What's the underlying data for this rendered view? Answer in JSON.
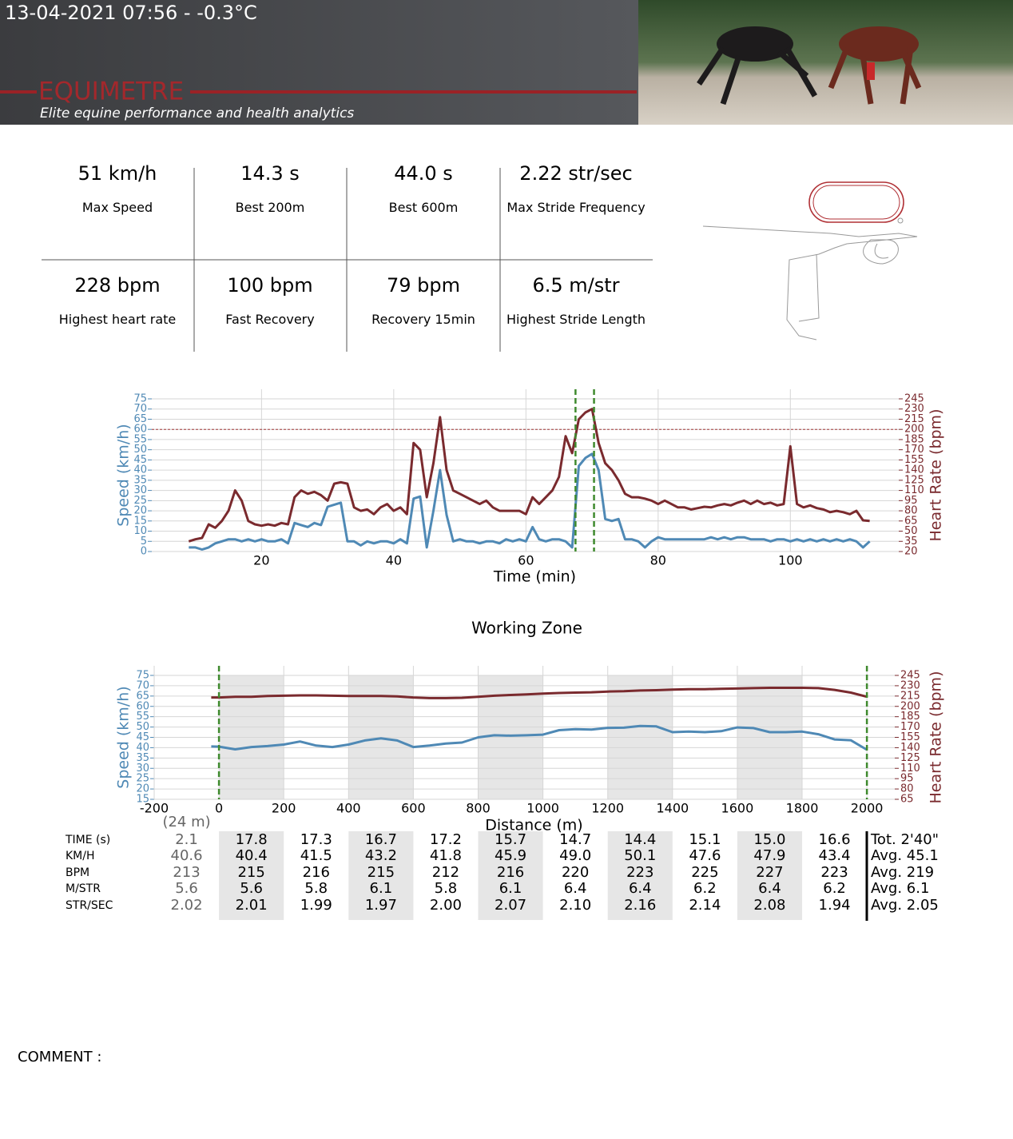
{
  "header": {
    "title": "13-04-2021 07:56 - -0.3°C",
    "brand": "EQUIMETRE",
    "tagline": "Elite equine performance and health analytics"
  },
  "stats": [
    {
      "value": "51 km/h",
      "label": "Max Speed"
    },
    {
      "value": "14.3 s",
      "label": "Best 200m"
    },
    {
      "value": "44.0 s",
      "label": "Best 600m"
    },
    {
      "value": "2.22 str/sec",
      "label": "Max Stride Frequency"
    },
    {
      "value": "228 bpm",
      "label": "Highest heart rate"
    },
    {
      "value": "100 bpm",
      "label": "Fast Recovery"
    },
    {
      "value": "79 bpm",
      "label": "Recovery 15min"
    },
    {
      "value": "6.5 m/str",
      "label": "Highest Stride Length"
    }
  ],
  "chart_data": [
    {
      "type": "line",
      "x_label": "Time (min)",
      "y_label": "Speed (km/h)",
      "y2_label": "Heart Rate (bpm)",
      "xlim": [
        3.4,
        116.4
      ],
      "xticks": [
        20,
        40,
        60,
        80,
        100
      ],
      "ylim": [
        0,
        75
      ],
      "yticks": [
        0,
        5,
        10,
        15,
        20,
        25,
        30,
        35,
        40,
        45,
        50,
        55,
        60,
        65,
        70,
        75
      ],
      "y2lim": [
        20,
        245
      ],
      "y2ticks": [
        20,
        35,
        50,
        65,
        80,
        95,
        110,
        125,
        140,
        155,
        170,
        185,
        200,
        215,
        230,
        245
      ],
      "grid": true,
      "vlines": [
        67.5,
        70.3
      ],
      "vline_color": "#3f8a2e",
      "hlines": [
        60
      ],
      "hline_color": "#a33a3a",
      "x": [
        9,
        10,
        11,
        12,
        13,
        14,
        15,
        16,
        17,
        18,
        19,
        20,
        21,
        22,
        23,
        24,
        25,
        26,
        27,
        28,
        29,
        30,
        31,
        32,
        33,
        34,
        35,
        36,
        37,
        38,
        39,
        40,
        41,
        42,
        43,
        44,
        45,
        46,
        47,
        48,
        49,
        50,
        51,
        52,
        53,
        54,
        55,
        56,
        57,
        58,
        59,
        60,
        61,
        62,
        63,
        64,
        65,
        66,
        67,
        68,
        69,
        70,
        71,
        72,
        73,
        74,
        75,
        76,
        77,
        78,
        79,
        80,
        81,
        82,
        83,
        84,
        85,
        86,
        87,
        88,
        89,
        90,
        91,
        92,
        93,
        94,
        95,
        96,
        97,
        98,
        99,
        100,
        101,
        102,
        103,
        104,
        105,
        106,
        107,
        108,
        109,
        110,
        111,
        112
      ],
      "series": [
        {
          "name": "Speed",
          "color": "#4f89b5",
          "values": [
            2,
            2,
            1,
            2,
            4,
            5,
            6,
            6,
            5,
            6,
            5,
            6,
            5,
            5,
            6,
            4,
            14,
            13,
            12,
            14,
            13,
            22,
            23,
            24,
            5,
            5,
            3,
            5,
            4,
            5,
            5,
            4,
            6,
            4,
            26,
            27,
            2,
            20,
            40,
            18,
            5,
            6,
            5,
            5,
            4,
            5,
            5,
            4,
            6,
            5,
            6,
            5,
            12,
            6,
            5,
            6,
            6,
            5,
            2,
            42,
            46,
            48,
            40,
            16,
            15,
            16,
            6,
            6,
            5,
            2,
            5,
            7,
            6,
            6,
            6,
            6,
            6,
            6,
            6,
            7,
            6,
            7,
            6,
            7,
            7,
            6,
            6,
            6,
            5,
            6,
            6,
            5,
            6,
            5,
            6,
            5,
            6,
            5,
            6,
            5,
            6,
            5,
            2,
            5
          ]
        },
        {
          "name": "Heart Rate",
          "color": "#7a2a2e",
          "axis": "y2",
          "values": [
            35,
            38,
            40,
            60,
            55,
            65,
            80,
            110,
            95,
            65,
            60,
            58,
            60,
            58,
            62,
            60,
            100,
            110,
            105,
            108,
            103,
            95,
            120,
            122,
            120,
            85,
            80,
            82,
            75,
            85,
            90,
            80,
            85,
            75,
            180,
            170,
            100,
            150,
            218,
            140,
            110,
            105,
            100,
            95,
            90,
            95,
            85,
            80,
            80,
            80,
            80,
            75,
            100,
            90,
            100,
            110,
            130,
            190,
            165,
            215,
            225,
            230,
            180,
            150,
            140,
            125,
            105,
            100,
            100,
            98,
            95,
            90,
            95,
            90,
            85,
            85,
            82,
            84,
            86,
            85,
            88,
            90,
            88,
            92,
            95,
            90,
            95,
            90,
            92,
            88,
            90,
            175,
            90,
            85,
            88,
            84,
            82,
            78,
            80,
            78,
            75,
            80,
            66,
            65
          ]
        }
      ]
    },
    {
      "type": "line",
      "title": "Working Zone",
      "x_label": "Distance (m)",
      "y_label": "Speed (km/h)",
      "y2_label": "Heart Rate (bpm)",
      "xlim": [
        -200,
        2086
      ],
      "xticks": [
        -200,
        0,
        200,
        400,
        600,
        800,
        1000,
        1200,
        1400,
        1600,
        1800,
        2000
      ],
      "ylim": [
        15,
        75
      ],
      "yticks": [
        15,
        20,
        25,
        30,
        35,
        40,
        45,
        50,
        55,
        60,
        65,
        70,
        75
      ],
      "y2lim": [
        65,
        245
      ],
      "y2ticks": [
        65,
        80,
        95,
        110,
        125,
        140,
        155,
        170,
        185,
        200,
        215,
        230,
        245
      ],
      "grid": true,
      "vlines": [
        0,
        2000
      ],
      "vline_color": "#3f8a2e",
      "x": [
        -24,
        0,
        50,
        100,
        150,
        200,
        250,
        300,
        350,
        400,
        450,
        500,
        550,
        600,
        650,
        700,
        750,
        800,
        850,
        900,
        950,
        1000,
        1050,
        1100,
        1150,
        1200,
        1250,
        1300,
        1350,
        1400,
        1450,
        1500,
        1550,
        1600,
        1650,
        1700,
        1750,
        1800,
        1850,
        1900,
        1950,
        2000
      ],
      "series": [
        {
          "name": "Speed",
          "color": "#4f89b5",
          "values": [
            40.6,
            40.5,
            39.2,
            40.3,
            40.8,
            41.5,
            43,
            41,
            40.3,
            41.5,
            43.5,
            44.5,
            43.5,
            40.3,
            41,
            42,
            42.5,
            45,
            46,
            45.8,
            46,
            46.3,
            48.5,
            49,
            48.8,
            49.6,
            49.7,
            50.5,
            50.3,
            47.5,
            47.8,
            47.5,
            48,
            49.8,
            49.5,
            47.5,
            47.5,
            47.8,
            46.5,
            44,
            43.6,
            39
          ]
        },
        {
          "name": "Heart Rate",
          "color": "#7a2a2e",
          "axis": "y2",
          "values": [
            213,
            213,
            214,
            214,
            215,
            215.5,
            216,
            216,
            215.5,
            215,
            215,
            215,
            214.5,
            213,
            212,
            212,
            212.5,
            214,
            215.5,
            216.5,
            217.5,
            218.5,
            219.5,
            220,
            220.5,
            221.5,
            222,
            223,
            223.5,
            224.5,
            225,
            225,
            225.5,
            226,
            226.5,
            227,
            227,
            227,
            226.5,
            224,
            220,
            214
          ]
        }
      ]
    }
  ],
  "table": {
    "first_note": "(24 m)",
    "row_labels": [
      "TIME (s)",
      "KM/H",
      "BPM",
      "M/STR",
      "STR/SEC"
    ],
    "rows": [
      [
        "2.1",
        "17.8",
        "17.3",
        "16.7",
        "17.2",
        "15.7",
        "14.7",
        "14.4",
        "15.1",
        "15.0",
        "16.6"
      ],
      [
        "40.6",
        "40.4",
        "41.5",
        "43.2",
        "41.8",
        "45.9",
        "49.0",
        "50.1",
        "47.6",
        "47.9",
        "43.4"
      ],
      [
        "213",
        "215",
        "216",
        "215",
        "212",
        "216",
        "220",
        "223",
        "225",
        "227",
        "223"
      ],
      [
        "5.6",
        "5.6",
        "5.8",
        "6.1",
        "5.8",
        "6.1",
        "6.4",
        "6.4",
        "6.2",
        "6.4",
        "6.2"
      ],
      [
        "2.02",
        "2.01",
        "1.99",
        "1.97",
        "2.00",
        "2.07",
        "2.10",
        "2.16",
        "2.14",
        "2.08",
        "1.94"
      ]
    ],
    "totals": [
      "Tot. 2'40\"",
      "Avg. 45.1",
      "Avg. 219",
      "Avg. 6.1",
      "Avg. 2.05"
    ]
  },
  "comment_label": "COMMENT :"
}
